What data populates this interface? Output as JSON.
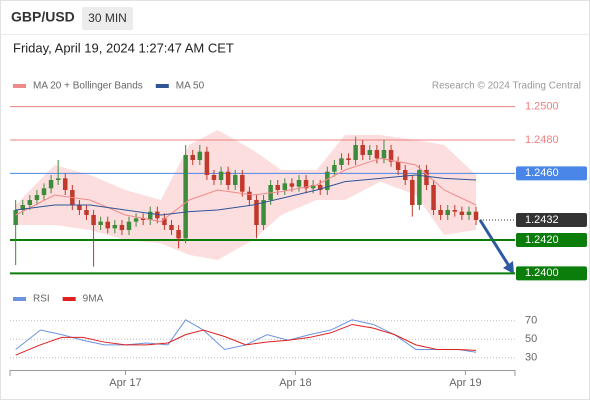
{
  "header": {
    "symbol": "GBP/USD",
    "interval": "30 MIN",
    "timestamp": "Friday, April 19, 2024 1:27:47 AM CET"
  },
  "chart_data": [
    {
      "type": "candlestick",
      "credit": "Research © 2024 Trading Central",
      "xlim": [
        -16.3,
        55
      ],
      "ylim": [
        1.2393,
        1.2519
      ],
      "up_color": "#3c8c3c",
      "down_color": "#c0392b",
      "x": [
        -15.5,
        -14.5,
        -13.5,
        -12.5,
        -11.5,
        -10.5,
        -9.5,
        -8.5,
        -7.5,
        -6.5,
        -5.5,
        -4.5,
        -3.5,
        -2.5,
        -1.5,
        -0.5,
        0.5,
        1.5,
        2.5,
        3.5,
        4.5,
        5.5,
        6.5,
        7.5,
        8.5,
        9.5,
        10.5,
        11.5,
        12.5,
        13.5,
        14.5,
        15.5,
        16.5,
        17.5,
        18.5,
        19.5,
        20.5,
        21.5,
        22.5,
        23.5,
        24.5,
        25.5,
        26.5,
        27.5,
        28.5,
        29.5,
        30.5,
        31.5,
        32.5,
        33.5,
        34.5,
        35.5,
        36.5,
        37.5,
        38.5,
        39.5,
        40.5,
        41.5,
        42.5,
        43.5,
        44.5,
        45.5,
        46.5,
        47.5,
        48.5,
        49.5
      ],
      "open": [
        1.2429,
        1.2438,
        1.2441,
        1.2444,
        1.2447,
        1.2451,
        1.2456,
        1.2457,
        1.245,
        1.2441,
        1.2438,
        1.2435,
        1.2429,
        1.2431,
        1.2427,
        1.2429,
        1.2426,
        1.2431,
        1.2433,
        1.2432,
        1.2437,
        1.2433,
        1.2429,
        1.2426,
        1.2421,
        1.2471,
        1.2468,
        1.2473,
        1.2459,
        1.2456,
        1.2461,
        1.2453,
        1.2459,
        1.2449,
        1.2444,
        1.2429,
        1.2444,
        1.2453,
        1.245,
        1.2454,
        1.2452,
        1.2456,
        1.2451,
        1.2453,
        1.245,
        1.2461,
        1.2465,
        1.2469,
        1.2468,
        1.2477,
        1.2471,
        1.2474,
        1.2469,
        1.2474,
        1.2467,
        1.2462,
        1.2456,
        1.2441,
        1.2462,
        1.2453,
        1.2438,
        1.2435,
        1.2438,
        1.2437,
        1.2435,
        1.2437
      ],
      "high": [
        1.2444,
        1.2444,
        1.2447,
        1.245,
        1.2454,
        1.2459,
        1.2468,
        1.246,
        1.2453,
        1.2444,
        1.2441,
        1.2438,
        1.2434,
        1.2434,
        1.2432,
        1.2432,
        1.2434,
        1.2436,
        1.2436,
        1.244,
        1.244,
        1.2436,
        1.2432,
        1.2429,
        1.2477,
        1.2474,
        1.2477,
        1.2476,
        1.2462,
        1.2464,
        1.2464,
        1.2462,
        1.2462,
        1.2452,
        1.2447,
        1.2447,
        1.2456,
        1.2456,
        1.2457,
        1.2457,
        1.2459,
        1.2459,
        1.2456,
        1.2456,
        1.2464,
        1.2468,
        1.2472,
        1.2472,
        1.2482,
        1.248,
        1.2477,
        1.2477,
        1.248,
        1.2477,
        1.247,
        1.2465,
        1.2459,
        1.2465,
        1.2465,
        1.2456,
        1.2441,
        1.2441,
        1.2441,
        1.244,
        1.244,
        1.244
      ],
      "low": [
        1.2405,
        1.2435,
        1.2438,
        1.2441,
        1.2444,
        1.2448,
        1.2453,
        1.2447,
        1.2438,
        1.2435,
        1.2432,
        1.2404,
        1.2426,
        1.2424,
        1.2424,
        1.2423,
        1.2423,
        1.2428,
        1.2429,
        1.2429,
        1.243,
        1.2426,
        1.2423,
        1.2415,
        1.2418,
        1.2465,
        1.2465,
        1.2456,
        1.2453,
        1.2453,
        1.245,
        1.245,
        1.2446,
        1.2441,
        1.2421,
        1.2426,
        1.2441,
        1.2447,
        1.2447,
        1.2449,
        1.2449,
        1.2448,
        1.2448,
        1.2447,
        1.2447,
        1.2458,
        1.2462,
        1.2465,
        1.2465,
        1.2468,
        1.2468,
        1.2466,
        1.2466,
        1.2464,
        1.2459,
        1.2453,
        1.2434,
        1.2438,
        1.245,
        1.2435,
        1.2432,
        1.2432,
        1.2434,
        1.2432,
        1.2432,
        1.2429
      ],
      "close": [
        1.2438,
        1.2441,
        1.2444,
        1.2447,
        1.2451,
        1.2456,
        1.2457,
        1.245,
        1.2441,
        1.2438,
        1.2435,
        1.2429,
        1.2431,
        1.2427,
        1.2429,
        1.2426,
        1.2431,
        1.2433,
        1.2432,
        1.2437,
        1.2433,
        1.2429,
        1.2426,
        1.2421,
        1.2471,
        1.2468,
        1.2473,
        1.2459,
        1.2456,
        1.2461,
        1.2453,
        1.2459,
        1.2449,
        1.2444,
        1.2429,
        1.2444,
        1.2453,
        1.245,
        1.2454,
        1.2452,
        1.2456,
        1.2451,
        1.2453,
        1.245,
        1.2461,
        1.2465,
        1.2469,
        1.2468,
        1.2477,
        1.2471,
        1.2474,
        1.2469,
        1.2474,
        1.2467,
        1.2462,
        1.2456,
        1.2441,
        1.2462,
        1.2453,
        1.2438,
        1.2435,
        1.2438,
        1.2437,
        1.2435,
        1.2437,
        1.2432
      ],
      "bands": {
        "color": "#fbd3d3",
        "x": [
          -15.5,
          -10,
          -5,
          0,
          5,
          9,
          13,
          18,
          22,
          27,
          31,
          36,
          41,
          45,
          49.5
        ],
        "upper": [
          1.2441,
          1.2465,
          1.2459,
          1.245,
          1.2444,
          1.2477,
          1.2486,
          1.2474,
          1.2462,
          1.2462,
          1.2483,
          1.2483,
          1.248,
          1.2477,
          1.2459
        ],
        "lower": [
          1.2429,
          1.2429,
          1.2426,
          1.242,
          1.2418,
          1.2411,
          1.2408,
          1.242,
          1.2435,
          1.2444,
          1.2444,
          1.2455,
          1.2447,
          1.2423,
          1.2426
        ]
      },
      "series": [
        {
          "name": "MA 20 + Bollinger Bands",
          "color": "#f08a8a",
          "x": [
            -15.5,
            -10,
            -5,
            0,
            5,
            9,
            13,
            18,
            22,
            27,
            31,
            36,
            41,
            45,
            49.5
          ],
          "values": [
            1.2435,
            1.2447,
            1.2444,
            1.2435,
            1.2431,
            1.2444,
            1.245,
            1.2447,
            1.2449,
            1.2453,
            1.2462,
            1.2469,
            1.2465,
            1.245,
            1.2441
          ]
        },
        {
          "name": "MA 50",
          "color": "#2f5597",
          "x": [
            -15.5,
            -10,
            -5,
            0,
            5,
            9,
            13,
            18,
            22,
            27,
            31,
            36,
            41,
            45,
            49.5
          ],
          "values": [
            1.2438,
            1.2441,
            1.2441,
            1.2438,
            1.2435,
            1.2437,
            1.2438,
            1.2441,
            1.2445,
            1.245,
            1.2455,
            1.2457,
            1.2459,
            1.2457,
            1.2456
          ]
        }
      ],
      "levels": [
        {
          "value": 1.25,
          "label": "1.2500",
          "color": "#f08080",
          "boxed": false,
          "line": "thin"
        },
        {
          "value": 1.248,
          "label": "1.2480",
          "color": "#f08080",
          "boxed": false,
          "line": "thin"
        },
        {
          "value": 1.246,
          "label": "1.2460",
          "color": "#4a86e8",
          "boxed": true,
          "line": "thin"
        },
        {
          "value": 1.2432,
          "label": "1.2432",
          "color": "#333333",
          "boxed": true,
          "line": "dotted"
        },
        {
          "value": 1.242,
          "label": "1.2420",
          "color": "#0a7d0a",
          "boxed": true,
          "line": "thick"
        },
        {
          "value": 1.24,
          "label": "1.2400",
          "color": "#0a7d0a",
          "boxed": true,
          "line": "thick"
        }
      ]
    },
    {
      "type": "line",
      "xlim": [
        -16.3,
        55
      ],
      "ylim": [
        19,
        87
      ],
      "yticks": [
        70,
        50,
        30
      ],
      "grid": true,
      "xticks": [
        {
          "value": 0,
          "label": "Apr 17"
        },
        {
          "value": 24,
          "label": "Apr 18"
        },
        {
          "value": 48,
          "label": "Apr 19"
        }
      ],
      "x": [
        -15.5,
        -12,
        -9,
        -6,
        -3,
        0,
        3,
        6,
        8.5,
        11,
        14,
        17,
        20,
        23,
        26,
        29,
        32,
        35,
        38,
        41,
        44,
        47,
        49.5
      ],
      "series": [
        {
          "name": "RSI",
          "color": "#6c93e0",
          "values": [
            39,
            60,
            55,
            49,
            44,
            44,
            46,
            44,
            71,
            60,
            39,
            44,
            55,
            49,
            55,
            60,
            71,
            66,
            55,
            39,
            39,
            39,
            36
          ]
        },
        {
          "name": "9MA",
          "color": "#e02020",
          "values": [
            33,
            44,
            52,
            52,
            47,
            44,
            44,
            46,
            55,
            60,
            53,
            44,
            47,
            49,
            52,
            57,
            66,
            62,
            55,
            44,
            39,
            39,
            38
          ]
        }
      ]
    }
  ]
}
